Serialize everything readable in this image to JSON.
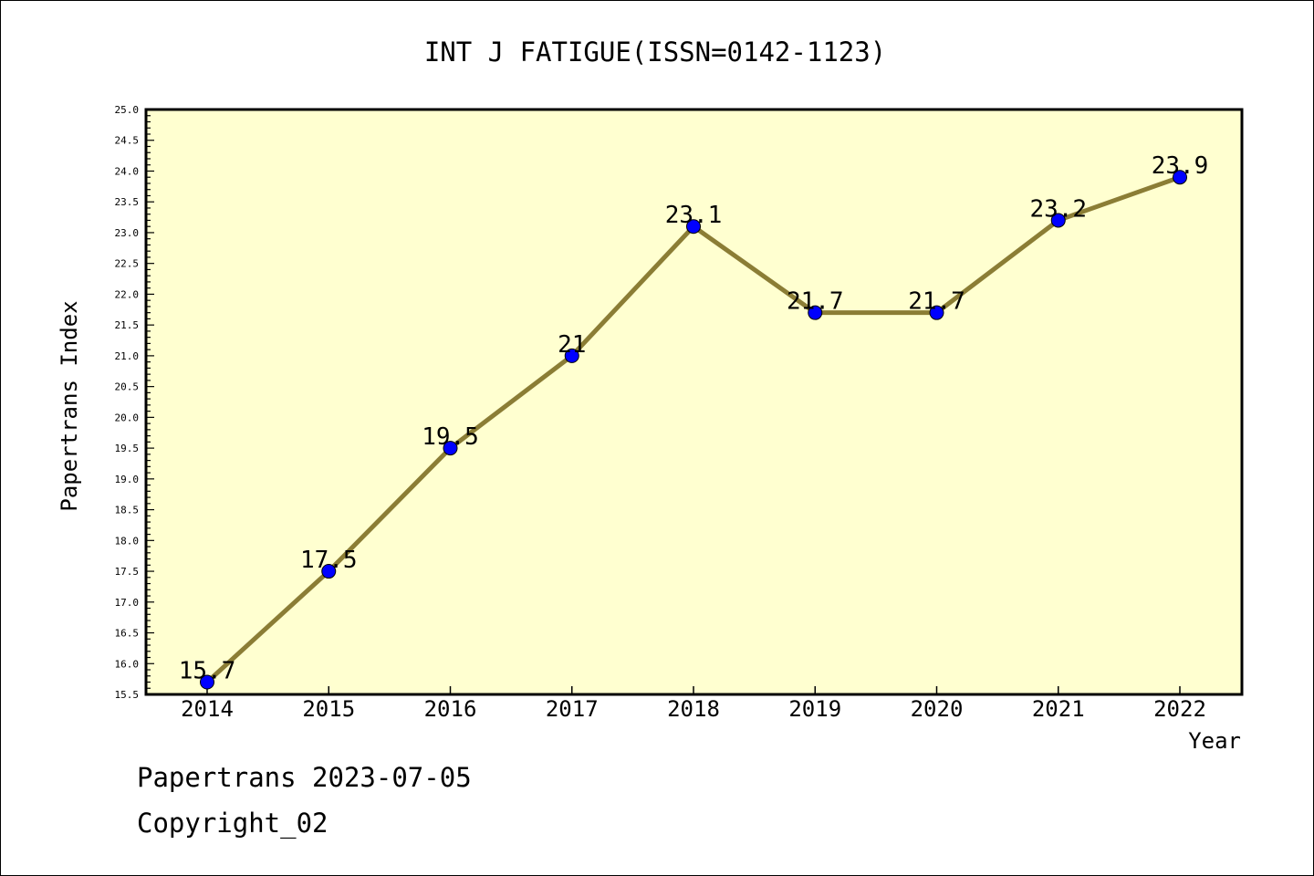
{
  "chart_data": {
    "type": "line",
    "title": "INT J FATIGUE(ISSN=0142-1123)",
    "xlabel": "Year",
    "ylabel": "Papertrans Index",
    "categories": [
      "2014",
      "2015",
      "2016",
      "2017",
      "2018",
      "2019",
      "2020",
      "2021",
      "2022"
    ],
    "values": [
      15.7,
      17.5,
      19.5,
      21,
      23.1,
      21.7,
      21.7,
      23.2,
      23.9
    ],
    "data_labels": [
      "15.7",
      "17.5",
      "19.5",
      "21",
      "23.1",
      "21.7",
      "21.7",
      "23.2",
      "23.9"
    ],
    "ylim": [
      15.5,
      25.0
    ],
    "yticks": [
      "15.5",
      "16.0",
      "16.5",
      "17.0",
      "17.5",
      "18.0",
      "18.5",
      "19.0",
      "19.5",
      "20.0",
      "20.5",
      "21.0",
      "21.5",
      "22.0",
      "22.5",
      "23.0",
      "23.5",
      "24.0",
      "24.5",
      "25.0"
    ],
    "grid": false,
    "legend": "none",
    "colors": {
      "plot_background": "#ffffd0",
      "line": "#8b7d35",
      "marker": "#0000ff"
    }
  },
  "footer": {
    "line1": "Papertrans 2023-07-05",
    "line2": "Copyright_02"
  }
}
